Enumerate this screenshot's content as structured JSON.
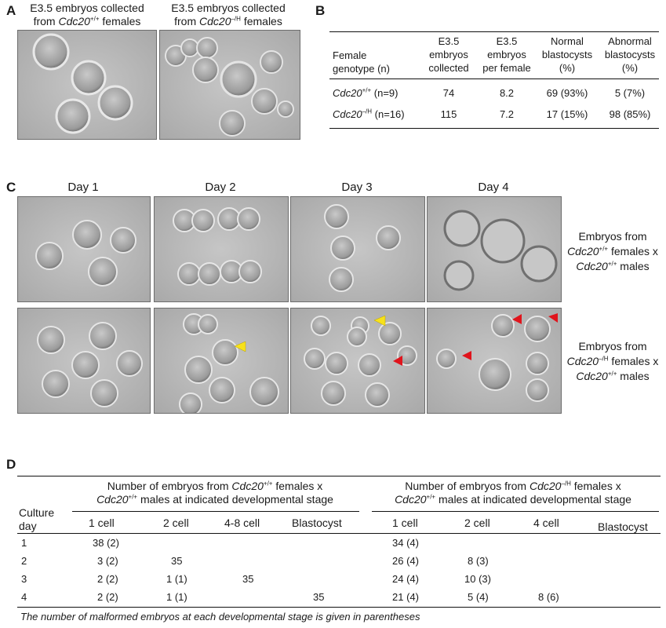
{
  "panelA": {
    "letter": "A",
    "captions": [
      {
        "line1": "E3.5 embryos collected",
        "line2_pre": "from ",
        "gene": "Cdc20",
        "sup": "+/+",
        "line2_post": " females"
      },
      {
        "line1": "E3.5 embryos  collected",
        "line2_pre": "from ",
        "gene": "Cdc20",
        "sup": "–/H",
        "line2_post": " females"
      }
    ]
  },
  "panelB": {
    "letter": "B",
    "headers": [
      [
        "Female",
        "genotype (n)"
      ],
      [
        "E3.5",
        "embryos",
        "collected"
      ],
      [
        "E3.5",
        "embryos",
        "per female"
      ],
      [
        "Normal",
        "blastocysts",
        "(%)"
      ],
      [
        "Abnormal",
        "blastocysts",
        "(%)"
      ]
    ],
    "rows": [
      {
        "gene": "Cdc20",
        "sup": "+/+",
        "n": " (n=9)",
        "collected": "74",
        "per_female": "8.2",
        "normal": "69 (93%)",
        "abnormal": "5 (7%)"
      },
      {
        "gene": "Cdc20",
        "sup": "–/H",
        "n": " (n=16)",
        "collected": "115",
        "per_female": "7.2",
        "normal": "17 (15%)",
        "abnormal": "98 (85%)"
      }
    ]
  },
  "panelC": {
    "letter": "C",
    "days": [
      "Day 1",
      "Day 2",
      "Day 3",
      "Day 4"
    ],
    "row_labels": [
      {
        "line1": "Embryos from",
        "gene": "Cdc20",
        "sup1": "+/+",
        "mid": " females x",
        "gene2": "Cdc20",
        "sup2": "+/+",
        "end": " males"
      },
      {
        "line1": "Embryos from",
        "gene": "Cdc20",
        "sup1": "–/H",
        "mid": " females x",
        "gene2": "Cdc20",
        "sup2": "+/+",
        "end": " males"
      }
    ],
    "arrow_colors": {
      "yellow": "#f7e11a",
      "red": "#e0141c"
    }
  },
  "panelD": {
    "letter": "D",
    "group1": {
      "pre": "Number of embryos from ",
      "gene": "Cdc20",
      "sup": "+/+",
      "post": " females x",
      "gene2": "Cdc20",
      "sup2": "+/+",
      "post2": " males at indicated developmental stage"
    },
    "group2": {
      "pre": "Number of embryos from ",
      "gene": "Cdc20",
      "sup": "–/H",
      "post": " females x",
      "gene2": "Cdc20",
      "sup2": "+/+",
      "post2": " males at indicated developmental stage"
    },
    "row_header": [
      "Culture",
      "day"
    ],
    "stages1": [
      "1 cell",
      "2 cell",
      "4-8 cell",
      "Blastocyst"
    ],
    "stages2": [
      "1 cell",
      "2 cell",
      "4 cell",
      "Blastocyst"
    ],
    "rows": [
      {
        "day": "1",
        "g1": [
          "38 (2)",
          "",
          "",
          ""
        ],
        "g2": [
          "34 (4)",
          "",
          "",
          ""
        ]
      },
      {
        "day": "2",
        "g1": [
          "3 (2)",
          "35",
          "",
          ""
        ],
        "g2": [
          "26 (4)",
          "8 (3)",
          "",
          ""
        ]
      },
      {
        "day": "3",
        "g1": [
          "2 (2)",
          "1 (1)",
          "35",
          ""
        ],
        "g2": [
          "24 (4)",
          "10 (3)",
          "",
          ""
        ]
      },
      {
        "day": "4",
        "g1": [
          "2 (2)",
          "1 (1)",
          "",
          "35"
        ],
        "g2": [
          "21 (4)",
          "5 (4)",
          "8 (6)",
          ""
        ]
      }
    ],
    "footnote": "The number of malformed embryos at each developmental stage is given in parentheses"
  }
}
